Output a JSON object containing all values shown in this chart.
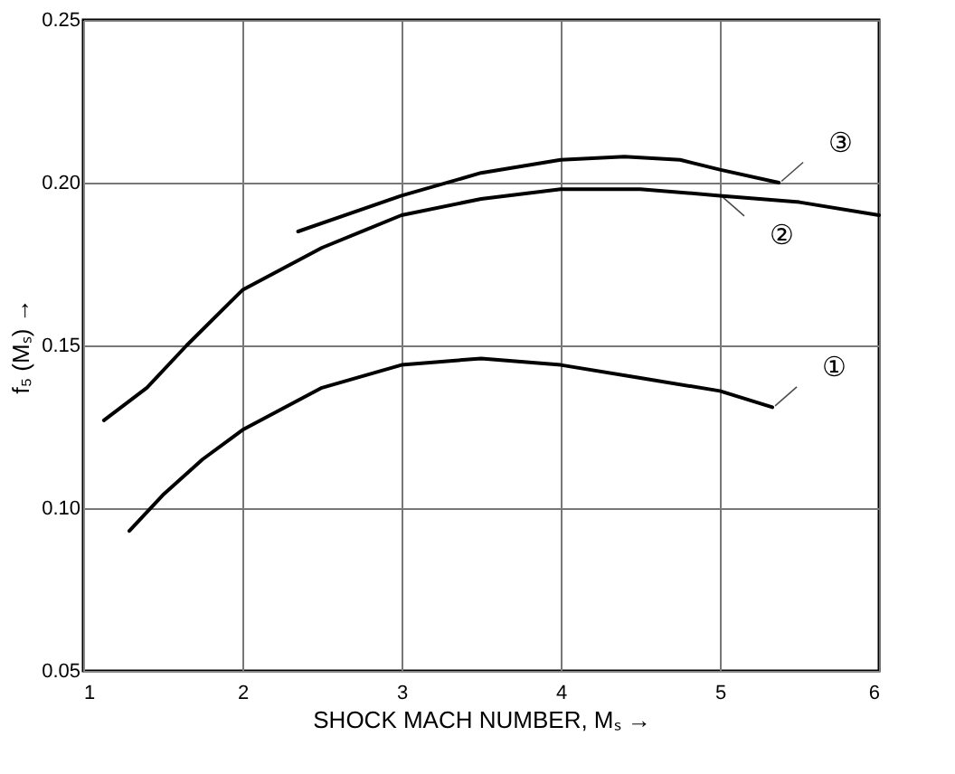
{
  "chart_data": {
    "type": "line",
    "xlabel": "SHOCK MACH NUMBER, Mₛ →",
    "ylabel": "f₅ (Mₛ) →",
    "xlim": [
      1,
      6
    ],
    "xticks": [
      1,
      2,
      3,
      4,
      5,
      6
    ],
    "ylim": [
      0.05,
      0.25
    ],
    "yticks": [
      {
        "value": 0.05,
        "label": "0.05"
      },
      {
        "value": 0.1,
        "label": "0.10"
      },
      {
        "value": 0.15,
        "label": "0.15"
      },
      {
        "value": 0.2,
        "label": "0.20"
      },
      {
        "value": 0.25,
        "label": "0.25"
      }
    ],
    "grid": true,
    "marker": "none",
    "line_style": "solid",
    "series": [
      {
        "name": "①",
        "color": "#000000",
        "x": [
          1.29,
          1.5,
          1.75,
          2,
          2.5,
          3,
          3.5,
          4,
          4.5,
          5,
          5.33
        ],
        "values": [
          0.093,
          0.104,
          0.115,
          0.124,
          0.137,
          0.144,
          0.146,
          0.144,
          0.14,
          0.136,
          0.131
        ]
      },
      {
        "name": "②",
        "color": "#000000",
        "x": [
          1.13,
          1.4,
          1.65,
          2,
          2.5,
          3,
          3.5,
          4,
          4.5,
          5,
          5.5,
          6
        ],
        "values": [
          0.127,
          0.137,
          0.15,
          0.167,
          0.18,
          0.19,
          0.195,
          0.198,
          0.198,
          0.196,
          0.194,
          0.19
        ]
      },
      {
        "name": "③",
        "color": "#000000",
        "x": [
          2.35,
          3,
          3.5,
          4,
          4.4,
          4.75,
          5,
          5.37
        ],
        "values": [
          0.185,
          0.196,
          0.203,
          0.207,
          0.208,
          0.207,
          0.204,
          0.2
        ]
      }
    ]
  }
}
